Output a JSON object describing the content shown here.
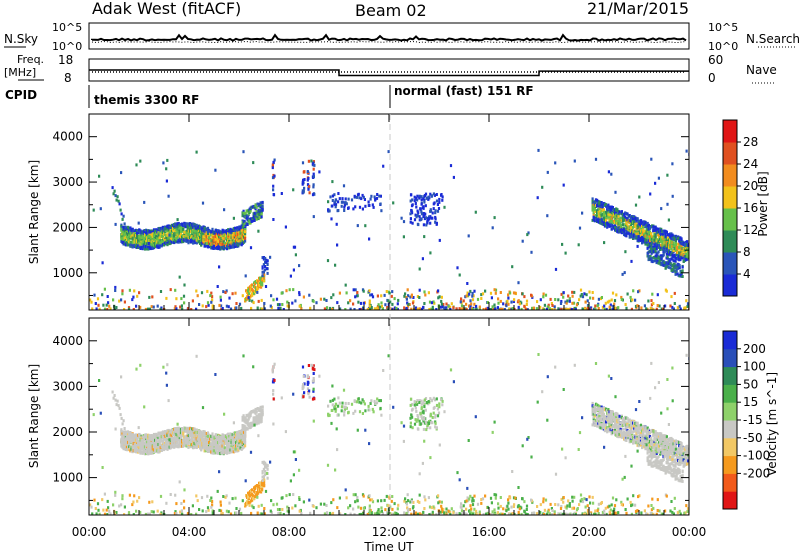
{
  "header": {
    "station": "Adak West (fitACF)",
    "beam": "Beam 02",
    "date": "21/Mar/2015"
  },
  "top_panels": {
    "nsky_label": "N.Sky",
    "nsearch_label": "N.Search",
    "nsky_ticks": [
      "10^5",
      "10^0"
    ],
    "nsearch_ticks": [
      "10^5",
      "10^0"
    ],
    "freq_label_1": "Freq.",
    "freq_label_2": "[MHz]",
    "freq_ticks": [
      "18",
      "8"
    ],
    "nave_label": "Nave",
    "nave_ticks": [
      "60",
      "0"
    ],
    "cpid_label": "CPID",
    "cpid_segments": [
      {
        "text": "themis 3300 RF",
        "start_hour": 0
      },
      {
        "text": "normal (fast) 151 RF",
        "start_hour": 12
      }
    ]
  },
  "colors": {
    "power": [
      "#1a2bd6",
      "#2a55b8",
      "#2e8b57",
      "#66c04a",
      "#f2c21b",
      "#f28c1e",
      "#e05020",
      "#e01515"
    ],
    "velocity": [
      "#e01515",
      "#f25a1a",
      "#f59a1e",
      "#f2c865",
      "#c8c8c4",
      "#8ed16a",
      "#4ab04a",
      "#2e8b57",
      "#2a4fb8",
      "#1a2bd6"
    ],
    "frequency_line": "#000000",
    "marker_line": "#c8c8c8"
  },
  "chart_data": [
    {
      "type": "heatmap",
      "title": "",
      "xlabel": "",
      "ylabel": "Slant Range [km]",
      "xlim": [
        0,
        24
      ],
      "ylim": [
        180,
        4500
      ],
      "y_ticks": [
        "4000",
        "3000",
        "2000",
        "1000"
      ],
      "colorbar_label": "Power [dB]",
      "colorbar_ticks": [
        "28",
        "24",
        "20",
        "16",
        "12",
        "8",
        "4"
      ],
      "echo_regions": [
        {
          "x": [
            1.2,
            6.2
          ],
          "y": [
            1700,
            2100
          ],
          "value": "high"
        },
        {
          "x": [
            0.9,
            1.5
          ],
          "y": [
            1900,
            2800
          ],
          "value": "low"
        },
        {
          "x": [
            6.2,
            6.8
          ],
          "y": [
            2000,
            2400
          ],
          "value": "low"
        },
        {
          "x": [
            6.6,
            7.0
          ],
          "y": [
            400,
            1400
          ],
          "value": "mid"
        },
        {
          "x": [
            7.0,
            8.9
          ],
          "y": [
            2700,
            3500
          ],
          "value": "low"
        },
        {
          "x": [
            9.5,
            11.5
          ],
          "y": [
            2400,
            2800
          ],
          "value": "low"
        },
        {
          "x": [
            12.8,
            14.0
          ],
          "y": [
            2000,
            2800
          ],
          "value": "low"
        },
        {
          "x": [
            20.2,
            24.0
          ],
          "y": [
            1200,
            2700
          ],
          "value": "high"
        },
        {
          "x": [
            22.5,
            23.6
          ],
          "y": [
            700,
            1100
          ],
          "value": "mid"
        }
      ]
    },
    {
      "type": "heatmap",
      "title": "",
      "xlabel": "Time UT",
      "ylabel": "Slant Range [km]",
      "xlim": [
        0,
        24
      ],
      "ylim": [
        180,
        4500
      ],
      "x_ticks": [
        "00:00",
        "04:00",
        "08:00",
        "12:00",
        "16:00",
        "20:00",
        "00:00"
      ],
      "y_ticks": [
        "4000",
        "3000",
        "2000",
        "1000"
      ],
      "colorbar_label": "Velocity [m s^-1]",
      "colorbar_ticks": [
        "200",
        "100",
        "50",
        "15",
        "-15",
        "-50",
        "-100",
        "-200"
      ]
    },
    {
      "type": "line",
      "title": "",
      "ylabel": "Freq. [MHz]",
      "x": [
        0,
        10,
        10,
        18,
        18,
        24
      ],
      "values": [
        13,
        13,
        10.5,
        10.5,
        12.5,
        12.5
      ],
      "ylim": [
        8,
        18
      ]
    }
  ]
}
